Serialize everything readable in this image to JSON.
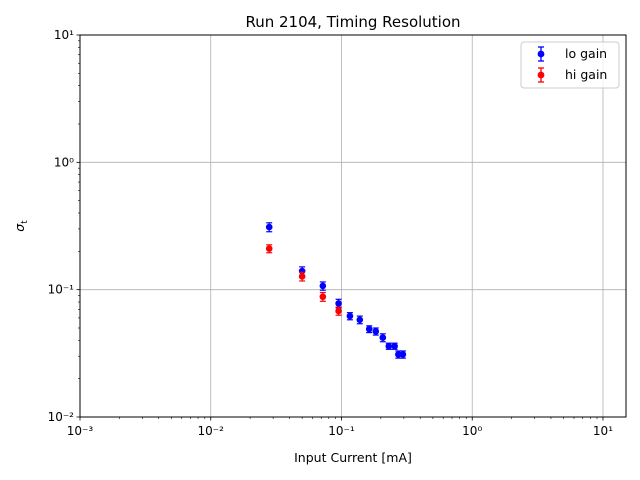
{
  "chart_data": {
    "type": "scatter",
    "title": "Run 2104, Timing Resolution",
    "xlabel": "Input Current [mA]",
    "ylabel": "σt",
    "x_scale": "log",
    "y_scale": "log",
    "xlim": [
      0.001,
      15
    ],
    "ylim": [
      0.01,
      10
    ],
    "grid": true,
    "legend_position": "top-right",
    "x_ticks": [
      {
        "value": 0.001,
        "label": "10⁻³"
      },
      {
        "value": 0.01,
        "label": "10⁻²"
      },
      {
        "value": 0.1,
        "label": "10⁻¹"
      },
      {
        "value": 1,
        "label": "10⁰"
      },
      {
        "value": 10,
        "label": "10¹"
      }
    ],
    "y_ticks": [
      {
        "value": 0.01,
        "label": "10⁻²"
      },
      {
        "value": 0.1,
        "label": "10⁻¹"
      },
      {
        "value": 1,
        "label": "10⁰"
      },
      {
        "value": 10,
        "label": "10¹"
      }
    ],
    "series": [
      {
        "name": "lo gain",
        "color": "#0000ff",
        "points": [
          {
            "x": 0.028,
            "y": 0.31,
            "err": 0.025
          },
          {
            "x": 0.05,
            "y": 0.14,
            "err": 0.011
          },
          {
            "x": 0.072,
            "y": 0.107,
            "err": 0.008
          },
          {
            "x": 0.095,
            "y": 0.078,
            "err": 0.006
          },
          {
            "x": 0.116,
            "y": 0.062,
            "err": 0.004
          },
          {
            "x": 0.138,
            "y": 0.058,
            "err": 0.004
          },
          {
            "x": 0.163,
            "y": 0.049,
            "err": 0.003
          },
          {
            "x": 0.183,
            "y": 0.047,
            "err": 0.003
          },
          {
            "x": 0.207,
            "y": 0.042,
            "err": 0.003
          },
          {
            "x": 0.23,
            "y": 0.036,
            "err": 0.002
          },
          {
            "x": 0.255,
            "y": 0.036,
            "err": 0.002
          },
          {
            "x": 0.272,
            "y": 0.031,
            "err": 0.002
          },
          {
            "x": 0.295,
            "y": 0.031,
            "err": 0.002
          }
        ]
      },
      {
        "name": "hi gain",
        "color": "#ff0000",
        "points": [
          {
            "x": 0.028,
            "y": 0.21,
            "err": 0.015
          },
          {
            "x": 0.05,
            "y": 0.127,
            "err": 0.01
          },
          {
            "x": 0.072,
            "y": 0.088,
            "err": 0.007
          },
          {
            "x": 0.095,
            "y": 0.068,
            "err": 0.005
          }
        ]
      }
    ]
  }
}
